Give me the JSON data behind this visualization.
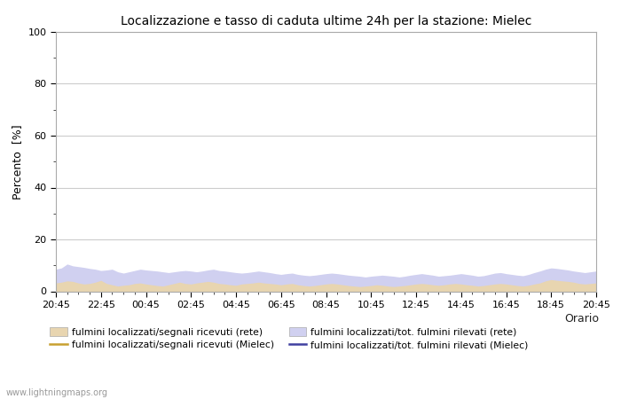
{
  "title": "Localizzazione e tasso di caduta ultime 24h per la stazione: Mielec",
  "ylabel": "Percento  [%]",
  "xlabel": "Orario",
  "ylim": [
    0,
    100
  ],
  "yticks": [
    0,
    20,
    40,
    60,
    80,
    100
  ],
  "minor_yticks": [
    10,
    30,
    50,
    70,
    90
  ],
  "x_labels": [
    "20:45",
    "22:45",
    "00:45",
    "02:45",
    "04:45",
    "06:45",
    "08:45",
    "10:45",
    "12:45",
    "14:45",
    "16:45",
    "18:45",
    "20:45"
  ],
  "n_points": 97,
  "fill_rete_color": "#e8d5b0",
  "fill_mielec_color": "#d0d0f0",
  "line_rete_color": "#c8a030",
  "line_mielec_color": "#4040a0",
  "bg_color": "#ffffff",
  "grid_color": "#cccccc",
  "watermark": "www.lightningmaps.org",
  "legend": [
    {
      "label": "fulmini localizzati/segnali ricevuti (rete)",
      "type": "fill",
      "color": "#e8d5b0"
    },
    {
      "label": "fulmini localizzati/segnali ricevuti (Mielec)",
      "type": "line",
      "color": "#c8a030"
    },
    {
      "label": "fulmini localizzati/tot. fulmini rilevati (rete)",
      "type": "fill",
      "color": "#d0d0f0"
    },
    {
      "label": "fulmini localizzati/tot. fulmini rilevati (Mielec)",
      "type": "line",
      "color": "#4040a0"
    }
  ],
  "rete_fill": [
    3.2,
    3.5,
    4.0,
    3.8,
    3.2,
    2.8,
    3.0,
    3.5,
    4.2,
    3.0,
    2.5,
    2.0,
    2.3,
    2.5,
    3.0,
    3.2,
    2.8,
    2.5,
    2.2,
    2.0,
    2.5,
    3.0,
    3.5,
    3.0,
    2.8,
    3.2,
    3.5,
    3.8,
    3.5,
    3.0,
    2.8,
    2.5,
    2.3,
    2.8,
    3.0,
    3.2,
    3.5,
    3.2,
    3.0,
    2.8,
    2.5,
    2.8,
    3.0,
    2.5,
    2.2,
    2.0,
    2.2,
    2.5,
    2.8,
    3.0,
    2.8,
    2.5,
    2.2,
    2.0,
    1.8,
    2.0,
    2.2,
    2.5,
    2.3,
    2.0,
    1.8,
    2.0,
    2.2,
    2.5,
    2.8,
    3.0,
    2.8,
    2.5,
    2.3,
    2.5,
    2.8,
    3.0,
    2.8,
    2.5,
    2.3,
    2.0,
    2.2,
    2.5,
    2.8,
    3.0,
    2.8,
    2.5,
    2.2,
    2.0,
    2.3,
    2.8,
    3.2,
    4.0,
    4.5,
    4.2,
    4.0,
    3.8,
    3.5,
    3.0,
    2.8,
    3.0,
    3.2
  ],
  "mielec_fill": [
    8.5,
    9.0,
    10.5,
    9.8,
    9.5,
    9.2,
    8.8,
    8.5,
    8.0,
    8.2,
    8.5,
    7.5,
    7.0,
    7.5,
    8.0,
    8.5,
    8.2,
    8.0,
    7.8,
    7.5,
    7.2,
    7.5,
    7.8,
    8.0,
    7.8,
    7.5,
    7.8,
    8.2,
    8.5,
    8.0,
    7.8,
    7.5,
    7.2,
    7.0,
    7.2,
    7.5,
    7.8,
    7.5,
    7.2,
    6.8,
    6.5,
    6.8,
    7.0,
    6.5,
    6.2,
    6.0,
    6.2,
    6.5,
    6.8,
    7.0,
    6.8,
    6.5,
    6.2,
    6.0,
    5.8,
    5.5,
    5.8,
    6.0,
    6.2,
    6.0,
    5.8,
    5.5,
    5.8,
    6.2,
    6.5,
    6.8,
    6.5,
    6.2,
    5.8,
    6.0,
    6.2,
    6.5,
    6.8,
    6.5,
    6.2,
    5.8,
    6.0,
    6.5,
    7.0,
    7.2,
    6.8,
    6.5,
    6.2,
    6.0,
    6.5,
    7.2,
    7.8,
    8.5,
    9.0,
    8.8,
    8.5,
    8.2,
    7.8,
    7.5,
    7.2,
    7.5,
    7.8
  ]
}
